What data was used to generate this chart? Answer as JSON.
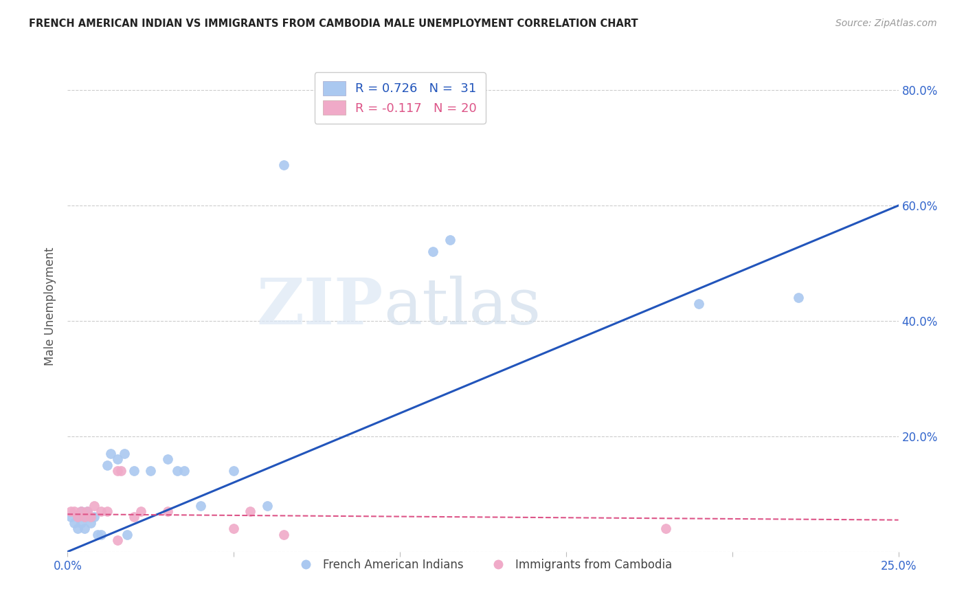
{
  "title": "FRENCH AMERICAN INDIAN VS IMMIGRANTS FROM CAMBODIA MALE UNEMPLOYMENT CORRELATION CHART",
  "source": "Source: ZipAtlas.com",
  "xlabel": "",
  "ylabel": "Male Unemployment",
  "xlim": [
    0.0,
    0.25
  ],
  "ylim": [
    0.0,
    0.85
  ],
  "xtick_positions": [
    0.0,
    0.05,
    0.1,
    0.15,
    0.2,
    0.25
  ],
  "xtick_labels": [
    "0.0%",
    "",
    "",
    "",
    "",
    "25.0%"
  ],
  "ytick_positions": [
    0.0,
    0.2,
    0.4,
    0.6,
    0.8
  ],
  "ytick_labels": [
    "",
    "20.0%",
    "40.0%",
    "60.0%",
    "80.0%"
  ],
  "blue_r": 0.726,
  "blue_n": 31,
  "pink_r": -0.117,
  "pink_n": 20,
  "blue_color": "#aac8f0",
  "pink_color": "#f0aac8",
  "blue_line_color": "#2255bb",
  "pink_line_color": "#dd5588",
  "blue_scatter": [
    [
      0.001,
      0.06
    ],
    [
      0.002,
      0.05
    ],
    [
      0.003,
      0.06
    ],
    [
      0.003,
      0.04
    ],
    [
      0.004,
      0.07
    ],
    [
      0.004,
      0.05
    ],
    [
      0.005,
      0.06
    ],
    [
      0.005,
      0.04
    ],
    [
      0.006,
      0.07
    ],
    [
      0.007,
      0.05
    ],
    [
      0.008,
      0.06
    ],
    [
      0.009,
      0.03
    ],
    [
      0.01,
      0.03
    ],
    [
      0.012,
      0.15
    ],
    [
      0.013,
      0.17
    ],
    [
      0.015,
      0.16
    ],
    [
      0.017,
      0.17
    ],
    [
      0.018,
      0.03
    ],
    [
      0.02,
      0.14
    ],
    [
      0.025,
      0.14
    ],
    [
      0.03,
      0.16
    ],
    [
      0.033,
      0.14
    ],
    [
      0.05,
      0.14
    ],
    [
      0.06,
      0.08
    ],
    [
      0.065,
      0.67
    ],
    [
      0.11,
      0.52
    ],
    [
      0.115,
      0.54
    ],
    [
      0.19,
      0.43
    ],
    [
      0.22,
      0.44
    ],
    [
      0.04,
      0.08
    ],
    [
      0.035,
      0.14
    ]
  ],
  "pink_scatter": [
    [
      0.001,
      0.07
    ],
    [
      0.002,
      0.07
    ],
    [
      0.003,
      0.06
    ],
    [
      0.004,
      0.07
    ],
    [
      0.005,
      0.06
    ],
    [
      0.006,
      0.07
    ],
    [
      0.007,
      0.06
    ],
    [
      0.008,
      0.08
    ],
    [
      0.01,
      0.07
    ],
    [
      0.012,
      0.07
    ],
    [
      0.015,
      0.14
    ],
    [
      0.016,
      0.14
    ],
    [
      0.02,
      0.06
    ],
    [
      0.022,
      0.07
    ],
    [
      0.03,
      0.07
    ],
    [
      0.05,
      0.04
    ],
    [
      0.055,
      0.07
    ],
    [
      0.065,
      0.03
    ],
    [
      0.18,
      0.04
    ],
    [
      0.015,
      0.02
    ]
  ],
  "blue_line": [
    [
      0.0,
      0.0
    ],
    [
      0.25,
      0.6
    ]
  ],
  "pink_line": [
    [
      0.0,
      0.065
    ],
    [
      0.25,
      0.055
    ]
  ],
  "watermark_zip": "ZIP",
  "watermark_atlas": "atlas",
  "legend_label_blue": "French American Indians",
  "legend_label_pink": "Immigrants from Cambodia"
}
